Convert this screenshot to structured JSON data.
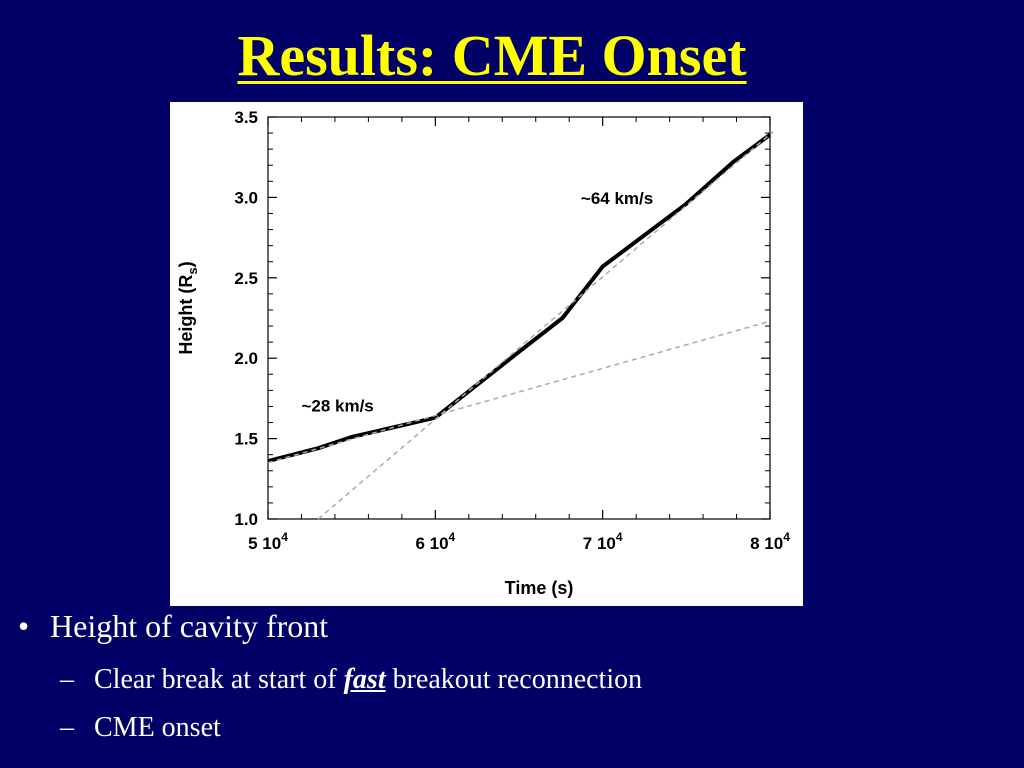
{
  "slide": {
    "title": "Results: CME Onset",
    "bullets": [
      {
        "text": "Height of cavity front",
        "sub": [
          {
            "before": "Clear break at start of ",
            "emph": "fast",
            "after": " breakout reconnection"
          },
          {
            "before": "CME onset",
            "emph": "",
            "after": ""
          }
        ]
      }
    ],
    "bullet_glyph": "•",
    "sub_bullet_glyph": "–"
  },
  "colors": {
    "background": "#000066",
    "title": "#ffff00",
    "text": "#ffffff",
    "panel": "#ffffff",
    "fit_line": "#aaaaaa"
  },
  "chart_data": {
    "type": "line",
    "xlabel": "Time (s)",
    "ylabel_main": "Height (R",
    "ylabel_sub": "s",
    "ylabel_end": ")",
    "xlim": [
      50000,
      80000
    ],
    "ylim": [
      1.0,
      3.5
    ],
    "xticks": [
      {
        "value": 50000,
        "mantissa": "5 10",
        "exp": "4"
      },
      {
        "value": 60000,
        "mantissa": "6 10",
        "exp": "4"
      },
      {
        "value": 70000,
        "mantissa": "7 10",
        "exp": "4"
      },
      {
        "value": 80000,
        "mantissa": "8 10",
        "exp": "4"
      }
    ],
    "yticks": [
      {
        "value": 1.0,
        "label": "1.0"
      },
      {
        "value": 1.5,
        "label": "1.5"
      },
      {
        "value": 2.0,
        "label": "2.0"
      },
      {
        "value": 2.5,
        "label": "2.5"
      },
      {
        "value": 3.0,
        "label": "3.0"
      },
      {
        "value": 3.5,
        "label": "3.5"
      }
    ],
    "series": [
      {
        "style": "solid-thick",
        "points": [
          [
            50000,
            1.36
          ],
          [
            53000,
            1.44
          ],
          [
            55000,
            1.51
          ],
          [
            60000,
            1.63
          ],
          [
            65000,
            2.04
          ],
          [
            67600,
            2.25
          ],
          [
            70000,
            2.57
          ],
          [
            75000,
            2.96
          ],
          [
            77800,
            3.22
          ],
          [
            80000,
            3.39
          ]
        ]
      },
      {
        "style": "dashed-fit",
        "points": [
          [
            50000,
            1.35
          ],
          [
            80000,
            2.23
          ]
        ]
      },
      {
        "style": "dashed-fit",
        "points": [
          [
            53000,
            1.0
          ],
          [
            80200,
            3.41
          ]
        ]
      }
    ],
    "annotations": [
      {
        "text": "~28 km/s",
        "x": 52000,
        "y": 1.67
      },
      {
        "text": "~64 km/s",
        "x": 68700,
        "y": 2.96
      }
    ],
    "grid": false,
    "legend": "none"
  }
}
